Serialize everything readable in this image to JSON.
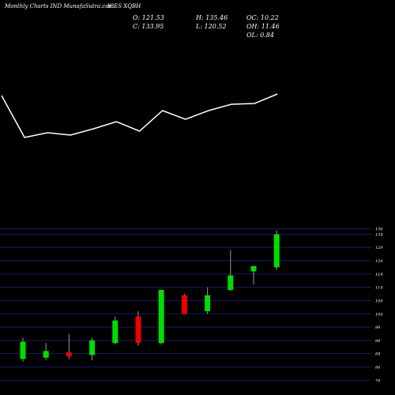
{
  "header": {
    "left_text": "Monthly Charts IND MunafaSutra.com",
    "symbol_text": "ICES XQBH",
    "open": "O: 121.53",
    "close": "C: 133.95",
    "high": "H: 135.46",
    "low": "L: 120.52",
    "oc": "OC: 10.22",
    "oh": "OH: 11.46",
    "ol": "OL: 0.84"
  },
  "colors": {
    "background": "#000000",
    "up": "#00dd00",
    "down": "#ee0000",
    "wick": "#999999",
    "line": "#ffffff",
    "grid": "#1a1a66"
  },
  "chart_data": [
    {
      "type": "line",
      "x": [
        1,
        2,
        3,
        4,
        5,
        6,
        7,
        8,
        9,
        10,
        11,
        12,
        13
      ],
      "values": [
        129.5,
        103,
        106,
        104.5,
        108.5,
        113,
        107,
        120,
        114.5,
        120,
        124,
        124.5,
        130.5
      ],
      "ylim": [
        80,
        150
      ]
    },
    {
      "type": "candlestick",
      "yticks": [
        136,
        134,
        129,
        124,
        119,
        114,
        109,
        104,
        99,
        94,
        89,
        84,
        79
      ],
      "ylim": [
        77,
        138
      ],
      "candles": [
        {
          "open": 87,
          "high": 95,
          "low": 86,
          "close": 93.5
        },
        {
          "open": 87.5,
          "high": 93,
          "low": 86.5,
          "close": 90
        },
        {
          "open": 89.5,
          "high": 96.5,
          "low": 87,
          "close": 88
        },
        {
          "open": 88.5,
          "high": 95,
          "low": 86.5,
          "close": 94
        },
        {
          "open": 93,
          "high": 103,
          "low": 92.5,
          "close": 101.5
        },
        {
          "open": 103,
          "high": 105,
          "low": 92,
          "close": 93
        },
        {
          "open": 93,
          "high": 113,
          "low": 92.5,
          "close": 113
        },
        {
          "open": 111,
          "high": 111.5,
          "low": 104,
          "close": 104
        },
        {
          "open": 105,
          "high": 114,
          "low": 104,
          "close": 111
        },
        {
          "open": 113,
          "high": 128,
          "low": 112.5,
          "close": 118.5
        },
        {
          "open": 120,
          "high": 122,
          "low": 115,
          "close": 122
        },
        {
          "open": 121.53,
          "high": 135.46,
          "low": 120.52,
          "close": 133.95
        }
      ]
    }
  ]
}
